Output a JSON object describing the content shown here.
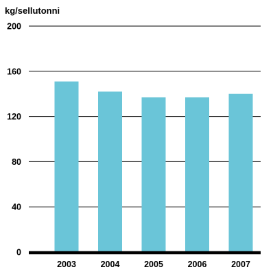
{
  "chart_data": {
    "type": "bar",
    "unit_label": "kg/sellutonni",
    "categories": [
      "2003",
      "2004",
      "2005",
      "2006",
      "2007"
    ],
    "values": [
      151,
      142,
      137,
      137,
      140
    ],
    "ylim": [
      0,
      200
    ],
    "yticks": [
      0,
      40,
      80,
      120,
      160,
      200
    ],
    "grid": true,
    "colors": {
      "bar": "#6ac5d8",
      "grid": "#000000",
      "baseline": "#000000",
      "text": "#000000"
    }
  }
}
